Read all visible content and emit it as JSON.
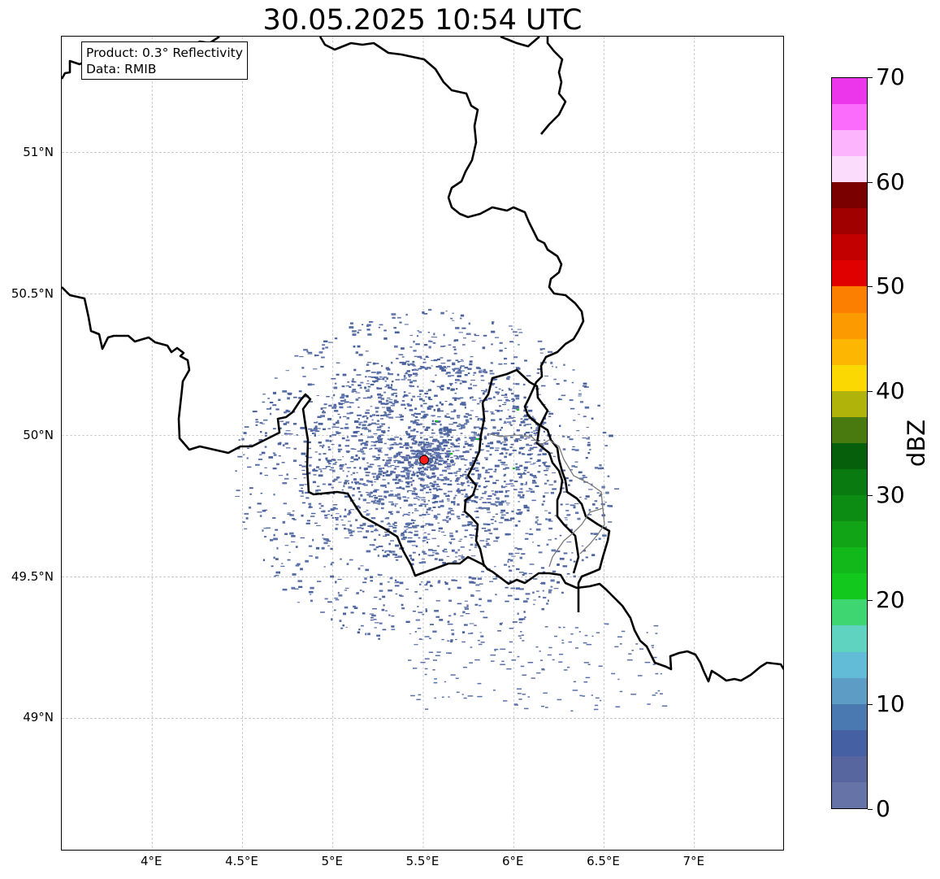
{
  "title": "30.05.2025 10:54 UTC",
  "info_box": {
    "product": "Product: 0.3° Reflectivity",
    "source": "Data: RMIB"
  },
  "map": {
    "extent_lon": [
      3.5,
      7.5
    ],
    "extent_lat": [
      48.53,
      51.41
    ],
    "gridlines": true,
    "lat_ticks": [
      {
        "value": 51.0,
        "label": "51°N"
      },
      {
        "value": 50.5,
        "label": "50.5°N"
      },
      {
        "value": 50.0,
        "label": "50°N"
      },
      {
        "value": 49.5,
        "label": "49.5°N"
      },
      {
        "value": 49.0,
        "label": "49°N"
      }
    ],
    "lon_ticks": [
      {
        "value": 4.0,
        "label": "4°E"
      },
      {
        "value": 4.5,
        "label": "4.5°E"
      },
      {
        "value": 5.0,
        "label": "5°E"
      },
      {
        "value": 5.5,
        "label": "5.5°E"
      },
      {
        "value": 6.0,
        "label": "6°E"
      },
      {
        "value": 6.5,
        "label": "6.5°E"
      },
      {
        "value": 7.0,
        "label": "7°E"
      }
    ],
    "radar_site": {
      "lon": 5.505,
      "lat": 49.914,
      "color": "#ff1a1a"
    },
    "border_color": "#000000",
    "secondary_border_color": "#7a7a7a"
  },
  "colorbar": {
    "label": "dBZ",
    "ticks": [
      0,
      10,
      20,
      30,
      40,
      50,
      60,
      70
    ],
    "range": [
      0,
      70
    ],
    "colors": [
      "#6673a6",
      "#5866a0",
      "#4560a3",
      "#4a78b0",
      "#5c9cc5",
      "#62bcd8",
      "#5fd3c0",
      "#3ed671",
      "#12c81c",
      "#12b81a",
      "#10a416",
      "#0c8c12",
      "#097a0f",
      "#06600b",
      "#497a0f",
      "#b0b40a",
      "#fcd802",
      "#fdb703",
      "#fc9a02",
      "#fc7f02",
      "#e10000",
      "#c20000",
      "#a10000",
      "#7a0000",
      "#fcdcfc",
      "#fcb4fc",
      "#fc6cfc",
      "#ec36ec"
    ]
  }
}
